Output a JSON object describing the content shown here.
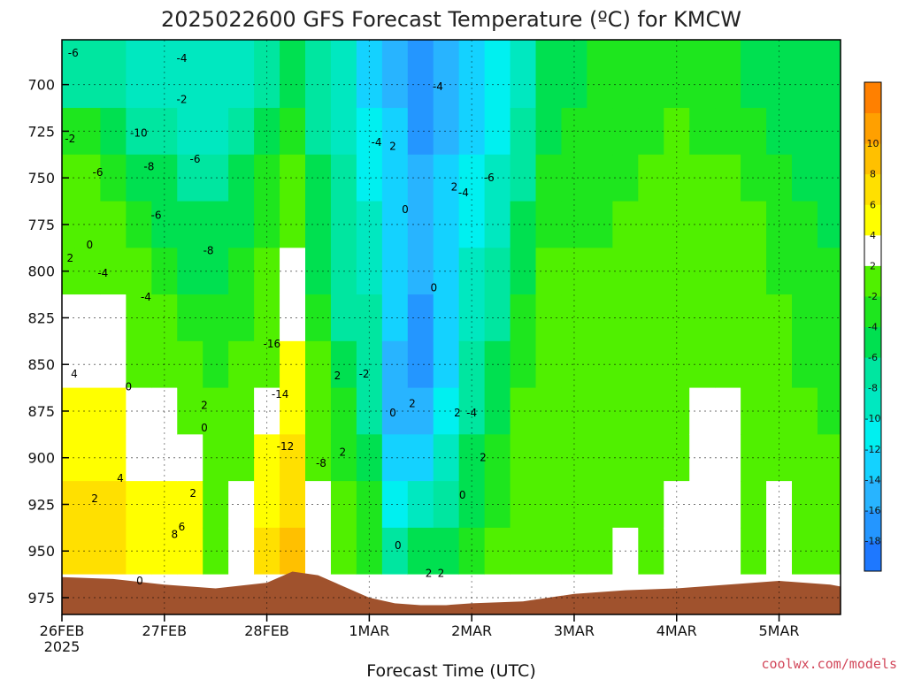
{
  "chart_data": {
    "type": "heatmap",
    "title": "2025022600 GFS Forecast Temperature (ºC) for KMCW",
    "xlabel": "Forecast Time (UTC)",
    "ylabel": "",
    "x_ticks": [
      "26FEB",
      "27FEB",
      "28FEB",
      "1MAR",
      "2MAR",
      "3MAR",
      "4MAR",
      "5MAR"
    ],
    "x_year_label": "2025",
    "xlim": [
      0,
      7.6
    ],
    "y_ticks": [
      700,
      725,
      750,
      775,
      800,
      825,
      850,
      875,
      900,
      925,
      950,
      975
    ],
    "ylim": [
      984,
      676
    ],
    "y_reversed": true,
    "grid": true,
    "colorbar": {
      "levels": [
        -20,
        -18,
        -16,
        -14,
        -12,
        -10,
        -8,
        -6,
        -4,
        -2,
        2,
        4,
        6,
        8,
        10,
        12
      ],
      "tick_labels": [
        "-18",
        "-16",
        "-14",
        "-12",
        "-10",
        "-8",
        "-6",
        "-4",
        "-2",
        "2",
        "4",
        "6",
        "8",
        "10"
      ],
      "colors": [
        "#1e78ff",
        "#2496ff",
        "#28b4ff",
        "#14d2ff",
        "#00f0f0",
        "#00e8c0",
        "#00e6a0",
        "#00e050",
        "#1ee61e",
        "#50f000",
        "#ffffff",
        "#ffff00",
        "#ffe000",
        "#ffc000",
        "#ffa000",
        "#ff8000"
      ]
    },
    "pressure_columns": [
      700,
      725,
      750,
      775,
      800,
      825,
      850,
      875,
      900,
      925,
      950,
      975
    ],
    "series": [
      {
        "x": 0.0,
        "values": [
          -7,
          -3,
          -2,
          0,
          1,
          2,
          3,
          4,
          5,
          6,
          6,
          null
        ]
      },
      {
        "x": 0.25,
        "values": [
          -7,
          -4,
          -2,
          0,
          1,
          2,
          3,
          4,
          5,
          6,
          6,
          null
        ]
      },
      {
        "x": 0.5,
        "values": [
          -8,
          -5,
          -3,
          -1,
          0,
          2,
          3,
          4,
          5,
          6,
          6,
          null
        ]
      },
      {
        "x": 0.75,
        "values": [
          -9,
          -7,
          -5,
          -3,
          -2,
          -1,
          1,
          2,
          3,
          4,
          5,
          null
        ]
      },
      {
        "x": 1.0,
        "values": [
          -10,
          -8,
          -6,
          -5,
          -4,
          -2,
          0,
          2,
          3,
          4,
          5,
          null
        ]
      },
      {
        "x": 1.25,
        "values": [
          -10,
          -9,
          -7,
          -6,
          -5,
          -3,
          -1,
          1,
          3,
          4,
          5,
          null
        ]
      },
      {
        "x": 1.5,
        "values": [
          -10,
          -9,
          -8,
          -6,
          -5,
          -4,
          -3,
          -2,
          -1,
          -1,
          1,
          null
        ]
      },
      {
        "x": 1.75,
        "values": [
          -9,
          -8,
          -6,
          -5,
          -4,
          -3,
          -2,
          -1,
          0,
          2,
          3,
          null
        ]
      },
      {
        "x": 2.0,
        "values": [
          -8,
          -6,
          -4,
          -3,
          -2,
          0,
          1,
          3,
          4,
          5,
          6,
          null
        ]
      },
      {
        "x": 2.25,
        "values": [
          -6,
          -4,
          -2,
          0,
          2,
          3,
          4,
          5,
          6,
          7,
          8,
          null
        ]
      },
      {
        "x": 2.5,
        "values": [
          -8,
          -7,
          -6,
          -6,
          -5,
          -4,
          -2,
          -1,
          1,
          2,
          3,
          null
        ]
      },
      {
        "x": 2.75,
        "values": [
          -10,
          -9,
          -8,
          -8,
          -8,
          -7,
          -6,
          -4,
          -3,
          -2,
          -1,
          null
        ]
      },
      {
        "x": 3.0,
        "values": [
          -13,
          -12,
          -11,
          -10,
          -9,
          -8,
          -8,
          -7,
          -6,
          -4,
          -3,
          null
        ]
      },
      {
        "x": 3.25,
        "values": [
          -15,
          -14,
          -13,
          -13,
          -13,
          -14,
          -15,
          -15,
          -13,
          -11,
          -8,
          null
        ]
      },
      {
        "x": 3.5,
        "values": [
          -18,
          -17,
          -16,
          -16,
          -16,
          -17,
          -17,
          -16,
          -13,
          -10,
          -6,
          null
        ]
      },
      {
        "x": 3.75,
        "values": [
          -16,
          -15,
          -14,
          -14,
          -14,
          -14,
          -13,
          -12,
          -10,
          -8,
          -6,
          null
        ]
      },
      {
        "x": 4.0,
        "values": [
          -14,
          -13,
          -12,
          -11,
          -10,
          -9,
          -8,
          -7,
          -6,
          -5,
          -4,
          null
        ]
      },
      {
        "x": 4.25,
        "values": [
          -12,
          -11,
          -10,
          -9,
          -8,
          -7,
          -6,
          -5,
          -4,
          -3,
          -2,
          null
        ]
      },
      {
        "x": 4.5,
        "values": [
          -9,
          -8,
          -7,
          -6,
          -5,
          -4,
          -3,
          -2,
          -1,
          0,
          1,
          null
        ]
      },
      {
        "x": 4.75,
        "values": [
          -6,
          -5,
          -4,
          -3,
          -2,
          -1,
          -1,
          -1,
          0,
          1,
          1,
          null
        ]
      },
      {
        "x": 5.0,
        "values": [
          -5,
          -4,
          -4,
          -3,
          -2,
          -1,
          -1,
          0,
          0,
          1,
          1,
          null
        ]
      },
      {
        "x": 5.25,
        "values": [
          -4,
          -4,
          -3,
          -3,
          -2,
          -2,
          -2,
          -1,
          0,
          1,
          1,
          null
        ]
      },
      {
        "x": 5.5,
        "values": [
          -4,
          -4,
          -3,
          -2,
          -2,
          -1,
          -1,
          0,
          0,
          1,
          2,
          null
        ]
      },
      {
        "x": 5.75,
        "values": [
          -3,
          -3,
          -2,
          -1,
          0,
          0,
          0,
          1,
          1,
          1,
          1,
          null
        ]
      },
      {
        "x": 6.0,
        "values": [
          -4,
          -2,
          -2,
          -1,
          0,
          0,
          1,
          1,
          1,
          2,
          2,
          null
        ]
      },
      {
        "x": 6.25,
        "values": [
          -4,
          -3,
          -2,
          -1,
          0,
          1,
          1,
          3,
          3,
          3,
          2,
          null
        ]
      },
      {
        "x": 6.5,
        "values": [
          -4,
          -3,
          -2,
          -1,
          0,
          1,
          1,
          3,
          3,
          3,
          2,
          null
        ]
      },
      {
        "x": 6.75,
        "values": [
          -5,
          -4,
          -3,
          -2,
          -1,
          0,
          1,
          1,
          1,
          1,
          1,
          null
        ]
      },
      {
        "x": 7.0,
        "values": [
          -5,
          -5,
          -4,
          -3,
          -3,
          -2,
          -2,
          -1,
          0,
          2,
          2,
          null
        ]
      },
      {
        "x": 7.25,
        "values": [
          -6,
          -5,
          -5,
          -4,
          -4,
          -3,
          -3,
          -2,
          -1,
          0,
          1,
          null
        ]
      },
      {
        "x": 7.5,
        "values": [
          -6,
          -6,
          -5,
          -5,
          -4,
          -4,
          -3,
          -3,
          -2,
          -1,
          0,
          null
        ]
      }
    ],
    "surface_pressure": {
      "x": [
        0,
        0.5,
        1.0,
        1.5,
        2.0,
        2.25,
        2.5,
        2.75,
        3.0,
        3.25,
        3.5,
        3.75,
        4.0,
        4.5,
        5.0,
        5.5,
        6.0,
        6.5,
        7.0,
        7.5,
        7.6
      ],
      "values": [
        964,
        965,
        968,
        970,
        967,
        961,
        963,
        969,
        975,
        978,
        979,
        979,
        978,
        977,
        973,
        971,
        970,
        968,
        966,
        968,
        969
      ],
      "color": "#a0522d"
    },
    "contour_labels": [
      {
        "x": 0.11,
        "y": 683,
        "text": "-6"
      },
      {
        "x": 0.08,
        "y": 729,
        "text": "-2"
      },
      {
        "x": 0.27,
        "y": 786,
        "text": "0"
      },
      {
        "x": 0.08,
        "y": 793,
        "text": "2"
      },
      {
        "x": 0.12,
        "y": 855,
        "text": "4"
      },
      {
        "x": 0.35,
        "y": 747,
        "text": "-6"
      },
      {
        "x": 0.4,
        "y": 801,
        "text": "-4"
      },
      {
        "x": 0.65,
        "y": 862,
        "text": "0"
      },
      {
        "x": 0.57,
        "y": 911,
        "text": "4"
      },
      {
        "x": 0.32,
        "y": 922,
        "text": "2"
      },
      {
        "x": 0.75,
        "y": 726,
        "text": "-10"
      },
      {
        "x": 0.85,
        "y": 744,
        "text": "-8"
      },
      {
        "x": 0.92,
        "y": 770,
        "text": "-6"
      },
      {
        "x": 0.82,
        "y": 814,
        "text": "-4"
      },
      {
        "x": 0.76,
        "y": 966,
        "text": "0"
      },
      {
        "x": 1.17,
        "y": 686,
        "text": "-4"
      },
      {
        "x": 1.17,
        "y": 708,
        "text": "-2"
      },
      {
        "x": 1.3,
        "y": 740,
        "text": "-6"
      },
      {
        "x": 1.43,
        "y": 789,
        "text": "-8"
      },
      {
        "x": 1.39,
        "y": 872,
        "text": "2"
      },
      {
        "x": 1.39,
        "y": 884,
        "text": "0"
      },
      {
        "x": 1.28,
        "y": 919,
        "text": "2"
      },
      {
        "x": 1.17,
        "y": 937,
        "text": "6"
      },
      {
        "x": 1.1,
        "y": 941,
        "text": "8"
      },
      {
        "x": 2.05,
        "y": 839,
        "text": "-16"
      },
      {
        "x": 2.13,
        "y": 866,
        "text": "-14"
      },
      {
        "x": 2.18,
        "y": 894,
        "text": "-12"
      },
      {
        "x": 2.53,
        "y": 903,
        "text": "-8"
      },
      {
        "x": 2.69,
        "y": 856,
        "text": "2"
      },
      {
        "x": 2.74,
        "y": 897,
        "text": "2"
      },
      {
        "x": 2.95,
        "y": 855,
        "text": "-2"
      },
      {
        "x": 3.07,
        "y": 731,
        "text": "-4"
      },
      {
        "x": 3.23,
        "y": 733,
        "text": "2"
      },
      {
        "x": 3.35,
        "y": 767,
        "text": "0"
      },
      {
        "x": 3.63,
        "y": 809,
        "text": "0"
      },
      {
        "x": 3.42,
        "y": 871,
        "text": "2"
      },
      {
        "x": 3.23,
        "y": 876,
        "text": "0"
      },
      {
        "x": 3.28,
        "y": 947,
        "text": "0"
      },
      {
        "x": 3.58,
        "y": 962,
        "text": "2"
      },
      {
        "x": 3.7,
        "y": 962,
        "text": "2"
      },
      {
        "x": 3.67,
        "y": 701,
        "text": "-4"
      },
      {
        "x": 3.83,
        "y": 755,
        "text": "2"
      },
      {
        "x": 3.92,
        "y": 758,
        "text": "-4"
      },
      {
        "x": 4.17,
        "y": 750,
        "text": "-6"
      },
      {
        "x": 3.86,
        "y": 876,
        "text": "2"
      },
      {
        "x": 4.0,
        "y": 876,
        "text": "-4"
      },
      {
        "x": 3.91,
        "y": 920,
        "text": "0"
      },
      {
        "x": 4.11,
        "y": 900,
        "text": "2"
      }
    ]
  }
}
